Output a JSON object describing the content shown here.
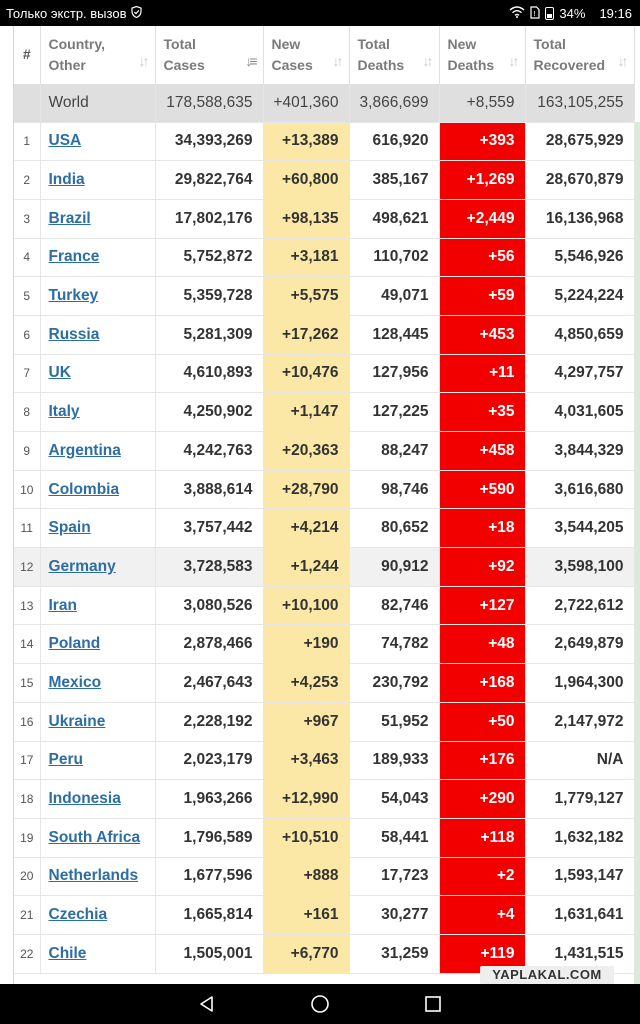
{
  "status_bar": {
    "carrier": "Только экстр. вызов",
    "battery": "34%",
    "time": "19:16",
    "icons": [
      "shield-icon",
      "wifi-icon",
      "sim-icon",
      "battery-icon"
    ]
  },
  "table": {
    "headers": {
      "rank": "#",
      "country": [
        "Country,",
        "Other"
      ],
      "total_cases": [
        "Total",
        "Cases"
      ],
      "new_cases": [
        "New",
        "Cases"
      ],
      "total_deaths": [
        "Total",
        "Deaths"
      ],
      "new_deaths": [
        "New",
        "Deaths"
      ],
      "total_recovered": [
        "Total",
        "Recovered"
      ]
    },
    "world": {
      "country": "World",
      "total_cases": "178,588,635",
      "new_cases": "+401,360",
      "total_deaths": "3,866,699",
      "new_deaths": "+8,559",
      "total_recovered": "163,105,255"
    },
    "rows": [
      {
        "rank": "1",
        "country": "USA",
        "total_cases": "34,393,269",
        "new_cases": "+13,389",
        "total_deaths": "616,920",
        "new_deaths": "+393",
        "total_recovered": "28,675,929"
      },
      {
        "rank": "2",
        "country": "India",
        "total_cases": "29,822,764",
        "new_cases": "+60,800",
        "total_deaths": "385,167",
        "new_deaths": "+1,269",
        "total_recovered": "28,670,879"
      },
      {
        "rank": "3",
        "country": "Brazil",
        "total_cases": "17,802,176",
        "new_cases": "+98,135",
        "total_deaths": "498,621",
        "new_deaths": "+2,449",
        "total_recovered": "16,136,968"
      },
      {
        "rank": "4",
        "country": "France",
        "total_cases": "5,752,872",
        "new_cases": "+3,181",
        "total_deaths": "110,702",
        "new_deaths": "+56",
        "total_recovered": "5,546,926"
      },
      {
        "rank": "5",
        "country": "Turkey",
        "total_cases": "5,359,728",
        "new_cases": "+5,575",
        "total_deaths": "49,071",
        "new_deaths": "+59",
        "total_recovered": "5,224,224"
      },
      {
        "rank": "6",
        "country": "Russia",
        "total_cases": "5,281,309",
        "new_cases": "+17,262",
        "total_deaths": "128,445",
        "new_deaths": "+453",
        "total_recovered": "4,850,659"
      },
      {
        "rank": "7",
        "country": "UK",
        "total_cases": "4,610,893",
        "new_cases": "+10,476",
        "total_deaths": "127,956",
        "new_deaths": "+11",
        "total_recovered": "4,297,757"
      },
      {
        "rank": "8",
        "country": "Italy",
        "total_cases": "4,250,902",
        "new_cases": "+1,147",
        "total_deaths": "127,225",
        "new_deaths": "+35",
        "total_recovered": "4,031,605"
      },
      {
        "rank": "9",
        "country": "Argentina",
        "total_cases": "4,242,763",
        "new_cases": "+20,363",
        "total_deaths": "88,247",
        "new_deaths": "+458",
        "total_recovered": "3,844,329"
      },
      {
        "rank": "10",
        "country": "Colombia",
        "total_cases": "3,888,614",
        "new_cases": "+28,790",
        "total_deaths": "98,746",
        "new_deaths": "+590",
        "total_recovered": "3,616,680"
      },
      {
        "rank": "11",
        "country": "Spain",
        "total_cases": "3,757,442",
        "new_cases": "+4,214",
        "total_deaths": "80,652",
        "new_deaths": "+18",
        "total_recovered": "3,544,205"
      },
      {
        "rank": "12",
        "country": "Germany",
        "total_cases": "3,728,583",
        "new_cases": "+1,244",
        "total_deaths": "90,912",
        "new_deaths": "+92",
        "total_recovered": "3,598,100",
        "shaded": true
      },
      {
        "rank": "13",
        "country": "Iran",
        "total_cases": "3,080,526",
        "new_cases": "+10,100",
        "total_deaths": "82,746",
        "new_deaths": "+127",
        "total_recovered": "2,722,612"
      },
      {
        "rank": "14",
        "country": "Poland",
        "total_cases": "2,878,466",
        "new_cases": "+190",
        "total_deaths": "74,782",
        "new_deaths": "+48",
        "total_recovered": "2,649,879"
      },
      {
        "rank": "15",
        "country": "Mexico",
        "total_cases": "2,467,643",
        "new_cases": "+4,253",
        "total_deaths": "230,792",
        "new_deaths": "+168",
        "total_recovered": "1,964,300"
      },
      {
        "rank": "16",
        "country": "Ukraine",
        "total_cases": "2,228,192",
        "new_cases": "+967",
        "total_deaths": "51,952",
        "new_deaths": "+50",
        "total_recovered": "2,147,972"
      },
      {
        "rank": "17",
        "country": "Peru",
        "total_cases": "2,023,179",
        "new_cases": "+3,463",
        "total_deaths": "189,933",
        "new_deaths": "+176",
        "total_recovered": "N/A"
      },
      {
        "rank": "18",
        "country": "Indonesia",
        "total_cases": "1,963,266",
        "new_cases": "+12,990",
        "total_deaths": "54,043",
        "new_deaths": "+290",
        "total_recovered": "1,779,127"
      },
      {
        "rank": "19",
        "country": "South Africa",
        "total_cases": "1,796,589",
        "new_cases": "+10,510",
        "total_deaths": "58,441",
        "new_deaths": "+118",
        "total_recovered": "1,632,182"
      },
      {
        "rank": "20",
        "country": "Netherlands",
        "total_cases": "1,677,596",
        "new_cases": "+888",
        "total_deaths": "17,723",
        "new_deaths": "+2",
        "total_recovered": "1,593,147"
      },
      {
        "rank": "21",
        "country": "Czechia",
        "total_cases": "1,665,814",
        "new_cases": "+161",
        "total_deaths": "30,277",
        "new_deaths": "+4",
        "total_recovered": "1,631,641"
      },
      {
        "rank": "22",
        "country": "Chile",
        "total_cases": "1,505,001",
        "new_cases": "+6,770",
        "total_deaths": "31,259",
        "new_deaths": "+119",
        "total_recovered": "1,431,515"
      }
    ]
  },
  "watermark": "YAPLAKAL.COM",
  "nav_bar": {
    "icons": [
      "back-icon",
      "home-icon",
      "recents-icon"
    ]
  },
  "colors": {
    "link": "#2c6ea4",
    "new_cases_bg": "#fbe8a6",
    "new_deaths_bg": "#f20000",
    "world_row_bg": "#dfdfdf"
  }
}
